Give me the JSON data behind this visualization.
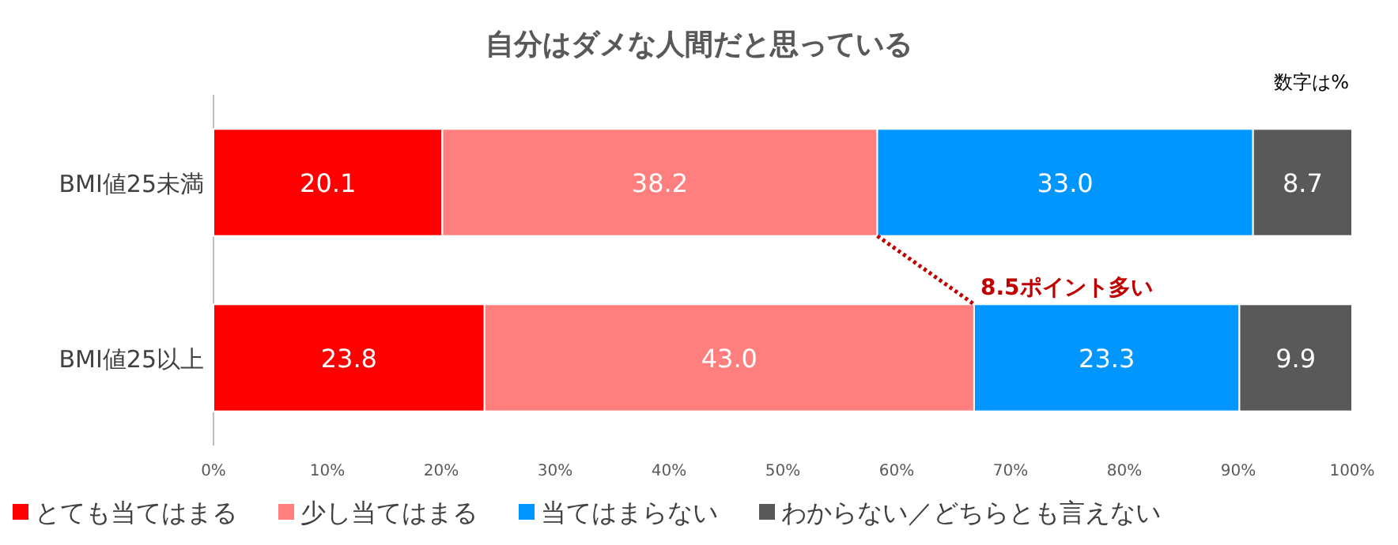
{
  "chart_data": {
    "type": "bar",
    "orientation": "horizontal",
    "stacked": true,
    "title": "自分はダメな人間だと思っている",
    "categories": [
      "BMI値25未満",
      "BMI値25以上"
    ],
    "series": [
      {
        "name": "とても当てはまる",
        "color": "#ff0000",
        "values": [
          20.1,
          23.8
        ],
        "value_labels": [
          "20.1",
          "23.8"
        ]
      },
      {
        "name": "少し当てはまる",
        "color": "#ff7f7f",
        "values": [
          38.2,
          43.0
        ],
        "value_labels": [
          "38.2",
          "43.0"
        ]
      },
      {
        "name": "当てはまらない",
        "color": "#0096ff",
        "values": [
          33.0,
          23.3
        ],
        "value_labels": [
          "33.0",
          "23.3"
        ]
      },
      {
        "name": "わからない／どちらとも言えない",
        "color": "#595959",
        "values": [
          8.7,
          9.9
        ],
        "value_labels": [
          "8.7",
          "9.9"
        ]
      }
    ],
    "xlim": [
      0,
      100
    ],
    "xticks": [
      {
        "value": 0,
        "label": "0%"
      },
      {
        "value": 10,
        "label": "10%"
      },
      {
        "value": 20,
        "label": "20%"
      },
      {
        "value": 30,
        "label": "30%"
      },
      {
        "value": 40,
        "label": "40%"
      },
      {
        "value": 50,
        "label": "50%"
      },
      {
        "value": 60,
        "label": "60%"
      },
      {
        "value": 70,
        "label": "70%"
      },
      {
        "value": 80,
        "label": "80%"
      },
      {
        "value": 90,
        "label": "90%"
      },
      {
        "value": 100,
        "label": "100%"
      }
    ],
    "data_labels": true,
    "legend": "bottom",
    "annotations": [
      "数字は%",
      {
        "text": "8.5ポイント多い",
        "x": 66.8,
        "y": "BMI値25以上"
      }
    ]
  }
}
